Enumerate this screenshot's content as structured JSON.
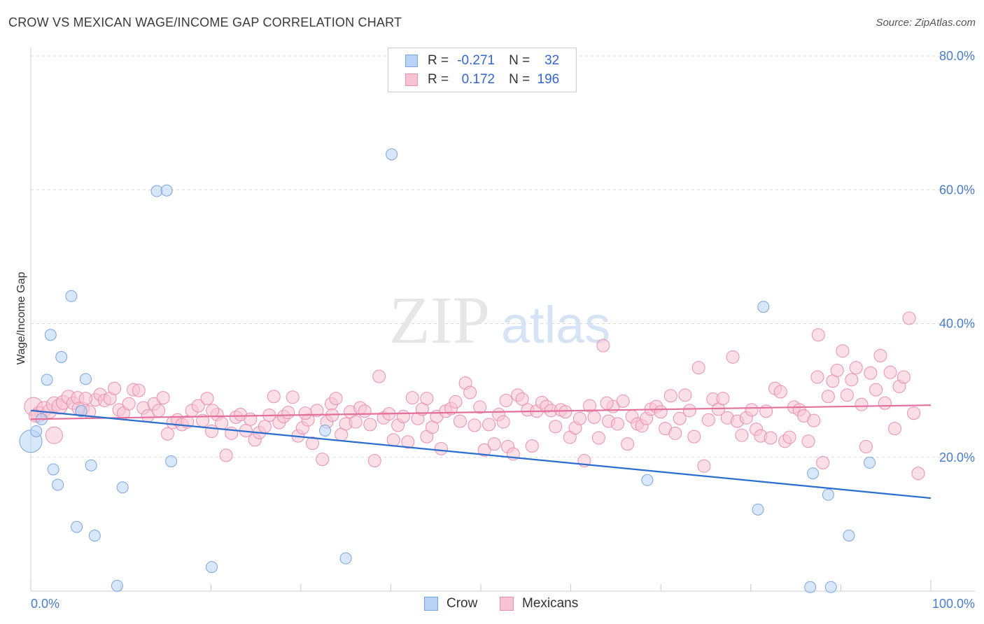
{
  "title": "CROW VS MEXICAN WAGE/INCOME GAP CORRELATION CHART",
  "source": "Source: ZipAtlas.com",
  "watermark": {
    "zip": "ZIP",
    "atlas": "atlas"
  },
  "legend": {
    "rows": [
      {
        "r_label": "R =",
        "r_value": "-0.271",
        "n_label": "N =",
        "n_value": "32"
      },
      {
        "r_label": "R =",
        "r_value": "0.172",
        "n_label": "N =",
        "n_value": "196"
      }
    ]
  },
  "colors": {
    "crow_fill": "#b8d3f5",
    "crow_stroke": "#7aa6e0",
    "crow_line": "#2a6fd0",
    "mex_fill": "#f8c4d4",
    "mex_stroke": "#ec8fae",
    "mex_line": "#e2709a",
    "grid": "#d8d8d8",
    "tick_text": "#4a7cc9"
  },
  "chart_data": {
    "type": "scatter",
    "xlabel": "",
    "ylabel": "Wage/Income Gap",
    "xlim": [
      0,
      100
    ],
    "ylim": [
      0,
      80
    ],
    "x_tick_labels": [
      "0.0%",
      "100.0%"
    ],
    "y_ticks": [
      20,
      40,
      60,
      80
    ],
    "y_tick_labels": [
      "20.0%",
      "40.0%",
      "60.0%",
      "80.0%"
    ],
    "grid": true,
    "legend_position": "top-center",
    "series": [
      {
        "name": "Crow",
        "trend": {
          "x": [
            0,
            100
          ],
          "y": [
            27.0,
            13.9
          ]
        },
        "points": [
          [
            0,
            22.4,
            16
          ],
          [
            0.6,
            23.9,
            8
          ],
          [
            1.2,
            25.7,
            8
          ],
          [
            2.2,
            38.3,
            8
          ],
          [
            1.8,
            31.6,
            8
          ],
          [
            2.5,
            18.2,
            8
          ],
          [
            3.0,
            15.9,
            8
          ],
          [
            3.4,
            35.0,
            8
          ],
          [
            4.5,
            44.1,
            8
          ],
          [
            5.1,
            9.6,
            8
          ],
          [
            5.6,
            26.9,
            8
          ],
          [
            6.1,
            31.7,
            8
          ],
          [
            6.7,
            18.8,
            8
          ],
          [
            7.1,
            8.3,
            8
          ],
          [
            9.6,
            0.8,
            8
          ],
          [
            10.2,
            15.5,
            8
          ],
          [
            14.0,
            59.8,
            8
          ],
          [
            15.1,
            59.9,
            8
          ],
          [
            15.6,
            19.4,
            8
          ],
          [
            20.1,
            3.6,
            8
          ],
          [
            32.7,
            24.0,
            8
          ],
          [
            35.0,
            4.9,
            8
          ],
          [
            40.1,
            65.3,
            8
          ],
          [
            68.5,
            16.6,
            8
          ],
          [
            80.8,
            12.2,
            8
          ],
          [
            81.4,
            42.5,
            8
          ],
          [
            86.9,
            17.6,
            8
          ],
          [
            86.6,
            0.6,
            8
          ],
          [
            88.6,
            14.4,
            8
          ],
          [
            88.9,
            0.6,
            8
          ],
          [
            90.9,
            8.3,
            8
          ],
          [
            93.2,
            19.2,
            8
          ]
        ]
      },
      {
        "name": "Mexicans",
        "trend": {
          "x": [
            0,
            100
          ],
          "y": [
            25.7,
            27.8
          ]
        },
        "points": [
          [
            0.3,
            27.6,
            13
          ],
          [
            0.9,
            26.4,
            11
          ],
          [
            1.5,
            27.2,
            11
          ],
          [
            2.1,
            26.9,
            10
          ],
          [
            2.6,
            27.9,
            11
          ],
          [
            3.2,
            27.6,
            11
          ],
          [
            3.6,
            28.2,
            10
          ],
          [
            4.2,
            29.0,
            10
          ],
          [
            4.7,
            28.1,
            9
          ],
          [
            5.2,
            28.9,
            9
          ],
          [
            5.8,
            27.3,
            9
          ],
          [
            6.5,
            26.8,
            9
          ],
          [
            7.2,
            28.6,
            9
          ],
          [
            7.7,
            29.4,
            9
          ],
          [
            8.2,
            28.5,
            9
          ],
          [
            8.8,
            28.8,
            9
          ],
          [
            9.3,
            30.3,
            9
          ],
          [
            9.8,
            27.1,
            9
          ],
          [
            10.3,
            26.6,
            9
          ],
          [
            10.9,
            28.0,
            9
          ],
          [
            11.4,
            30.1,
            9
          ],
          [
            12.0,
            30.0,
            9
          ],
          [
            12.5,
            27.4,
            9
          ],
          [
            13.0,
            26.2,
            9
          ],
          [
            13.7,
            28.0,
            9
          ],
          [
            14.2,
            27.0,
            9
          ],
          [
            14.7,
            28.9,
            9
          ],
          [
            15.2,
            23.5,
            9
          ],
          [
            15.8,
            25.2,
            9
          ],
          [
            16.3,
            25.6,
            9
          ],
          [
            16.8,
            24.9,
            9
          ],
          [
            17.4,
            25.3,
            9
          ],
          [
            17.9,
            27.0,
            9
          ],
          [
            18.6,
            27.7,
            9
          ],
          [
            19.1,
            25.5,
            9
          ],
          [
            19.6,
            28.8,
            9
          ],
          [
            20.1,
            23.9,
            9
          ],
          [
            20.7,
            26.4,
            9
          ],
          [
            21.2,
            25.1,
            9
          ],
          [
            21.7,
            20.3,
            9
          ],
          [
            22.3,
            23.6,
            9
          ],
          [
            22.8,
            26.0,
            9
          ],
          [
            23.3,
            26.4,
            9
          ],
          [
            23.9,
            24.0,
            9
          ],
          [
            24.4,
            25.7,
            9
          ],
          [
            24.9,
            22.6,
            9
          ],
          [
            25.4,
            23.7,
            9
          ],
          [
            26.0,
            24.6,
            9
          ],
          [
            26.5,
            26.3,
            9
          ],
          [
            27.0,
            29.1,
            9
          ],
          [
            27.6,
            25.2,
            9
          ],
          [
            28.1,
            26.1,
            9
          ],
          [
            28.6,
            26.7,
            9
          ],
          [
            29.1,
            29.0,
            9
          ],
          [
            29.7,
            23.2,
            9
          ],
          [
            30.2,
            24.4,
            9
          ],
          [
            30.8,
            25.6,
            9
          ],
          [
            31.3,
            22.1,
            9
          ],
          [
            31.8,
            27.0,
            9
          ],
          [
            32.4,
            19.7,
            9
          ],
          [
            32.9,
            25.3,
            9
          ],
          [
            33.4,
            28.0,
            9
          ],
          [
            33.9,
            28.8,
            9
          ],
          [
            34.5,
            23.4,
            9
          ],
          [
            35.0,
            25.0,
            9
          ],
          [
            35.5,
            26.8,
            9
          ],
          [
            36.1,
            25.3,
            9
          ],
          [
            36.6,
            27.4,
            9
          ],
          [
            37.1,
            26.9,
            9
          ],
          [
            37.7,
            24.9,
            9
          ],
          [
            38.2,
            19.5,
            9
          ],
          [
            38.7,
            32.1,
            9
          ],
          [
            39.2,
            25.9,
            9
          ],
          [
            39.8,
            26.5,
            9
          ],
          [
            40.3,
            22.6,
            9
          ],
          [
            40.8,
            24.8,
            9
          ],
          [
            41.4,
            26.1,
            9
          ],
          [
            41.9,
            22.3,
            9
          ],
          [
            42.4,
            28.9,
            9
          ],
          [
            43.0,
            25.8,
            9
          ],
          [
            43.5,
            27.2,
            9
          ],
          [
            44.0,
            23.1,
            9
          ],
          [
            44.6,
            24.5,
            9
          ],
          [
            45.1,
            26.1,
            9
          ],
          [
            45.6,
            21.3,
            9
          ],
          [
            46.1,
            26.9,
            9
          ],
          [
            46.7,
            27.3,
            9
          ],
          [
            47.2,
            28.3,
            9
          ],
          [
            47.7,
            25.4,
            9
          ],
          [
            48.3,
            31.1,
            9
          ],
          [
            48.8,
            29.7,
            9
          ],
          [
            49.3,
            24.8,
            9
          ],
          [
            49.9,
            27.5,
            9
          ],
          [
            50.4,
            21.1,
            9
          ],
          [
            50.9,
            24.9,
            9
          ],
          [
            51.5,
            22.0,
            9
          ],
          [
            52.0,
            26.4,
            9
          ],
          [
            52.5,
            25.3,
            9
          ],
          [
            53.0,
            21.6,
            9
          ],
          [
            53.6,
            20.5,
            9
          ],
          [
            54.1,
            29.3,
            9
          ],
          [
            54.6,
            28.7,
            9
          ],
          [
            55.2,
            27.1,
            9
          ],
          [
            55.7,
            21.7,
            9
          ],
          [
            56.2,
            26.9,
            9
          ],
          [
            56.8,
            28.2,
            9
          ],
          [
            57.3,
            27.6,
            9
          ],
          [
            57.8,
            27.0,
            9
          ],
          [
            58.3,
            24.6,
            9
          ],
          [
            58.9,
            27.1,
            9
          ],
          [
            59.4,
            26.8,
            9
          ],
          [
            59.9,
            23.0,
            9
          ],
          [
            60.5,
            24.4,
            9
          ],
          [
            61.0,
            25.8,
            9
          ],
          [
            61.5,
            19.5,
            9
          ],
          [
            62.1,
            27.7,
            9
          ],
          [
            62.6,
            26.0,
            9
          ],
          [
            63.1,
            22.9,
            9
          ],
          [
            63.6,
            36.7,
            9
          ],
          [
            64.2,
            25.4,
            9
          ],
          [
            64.7,
            27.6,
            9
          ],
          [
            65.2,
            25.0,
            9
          ],
          [
            65.8,
            28.4,
            9
          ],
          [
            66.3,
            22.0,
            9
          ],
          [
            66.8,
            26.1,
            9
          ],
          [
            67.4,
            25.0,
            9
          ],
          [
            67.9,
            24.7,
            9
          ],
          [
            68.4,
            25.8,
            9
          ],
          [
            68.9,
            27.2,
            9
          ],
          [
            69.5,
            27.6,
            9
          ],
          [
            70.0,
            26.8,
            9
          ],
          [
            70.5,
            24.3,
            9
          ],
          [
            71.1,
            29.2,
            9
          ],
          [
            71.6,
            23.6,
            9
          ],
          [
            72.1,
            25.8,
            9
          ],
          [
            72.7,
            29.3,
            9
          ],
          [
            73.2,
            27.0,
            9
          ],
          [
            73.7,
            23.1,
            9
          ],
          [
            74.2,
            33.4,
            9
          ],
          [
            74.8,
            18.7,
            9
          ],
          [
            75.3,
            25.6,
            9
          ],
          [
            75.8,
            28.7,
            9
          ],
          [
            76.4,
            27.2,
            9
          ],
          [
            76.9,
            28.8,
            9
          ],
          [
            77.4,
            25.9,
            9
          ],
          [
            78.0,
            35.0,
            9
          ],
          [
            78.5,
            25.4,
            9
          ],
          [
            79.0,
            23.3,
            9
          ],
          [
            79.5,
            25.9,
            9
          ],
          [
            80.1,
            27.1,
            9
          ],
          [
            80.6,
            24.2,
            9
          ],
          [
            81.1,
            23.2,
            9
          ],
          [
            81.7,
            26.9,
            9
          ],
          [
            82.2,
            22.9,
            9
          ],
          [
            82.7,
            30.3,
            9
          ],
          [
            83.3,
            29.8,
            9
          ],
          [
            83.8,
            22.4,
            9
          ],
          [
            84.3,
            23.0,
            9
          ],
          [
            84.8,
            27.5,
            9
          ],
          [
            85.4,
            27.1,
            9
          ],
          [
            85.9,
            26.2,
            9
          ],
          [
            86.4,
            22.4,
            9
          ],
          [
            87.0,
            25.5,
            9
          ],
          [
            87.5,
            38.3,
            9
          ],
          [
            88.0,
            19.2,
            9
          ],
          [
            88.6,
            29.1,
            9
          ],
          [
            89.1,
            31.4,
            9
          ],
          [
            89.6,
            33.0,
            9
          ],
          [
            90.2,
            35.9,
            9
          ],
          [
            90.7,
            29.3,
            9
          ],
          [
            91.2,
            31.6,
            9
          ],
          [
            91.7,
            33.4,
            9
          ],
          [
            92.3,
            27.9,
            9
          ],
          [
            92.8,
            21.6,
            9
          ],
          [
            93.3,
            32.6,
            9
          ],
          [
            93.9,
            30.1,
            9
          ],
          [
            94.4,
            35.2,
            9
          ],
          [
            94.9,
            28.1,
            9
          ],
          [
            95.5,
            32.7,
            9
          ],
          [
            96.0,
            24.3,
            9
          ],
          [
            96.5,
            30.6,
            9
          ],
          [
            97.0,
            32.0,
            9
          ],
          [
            97.6,
            40.8,
            9
          ],
          [
            98.1,
            26.6,
            9
          ],
          [
            98.6,
            17.6,
            9
          ],
          [
            2.6,
            23.3,
            12
          ],
          [
            5.3,
            27.3,
            9
          ],
          [
            6.1,
            28.8,
            9
          ],
          [
            20.2,
            27.0,
            9
          ],
          [
            30.5,
            26.6,
            9
          ],
          [
            33.5,
            26.3,
            9
          ],
          [
            44.0,
            28.8,
            9
          ],
          [
            52.8,
            28.5,
            9
          ],
          [
            64.0,
            28.1,
            9
          ],
          [
            87.4,
            32.0,
            9
          ],
          [
            0.5,
            26.2,
            9
          ]
        ]
      }
    ]
  },
  "bottom_legend": [
    {
      "label": "Crow"
    },
    {
      "label": "Mexicans"
    }
  ]
}
